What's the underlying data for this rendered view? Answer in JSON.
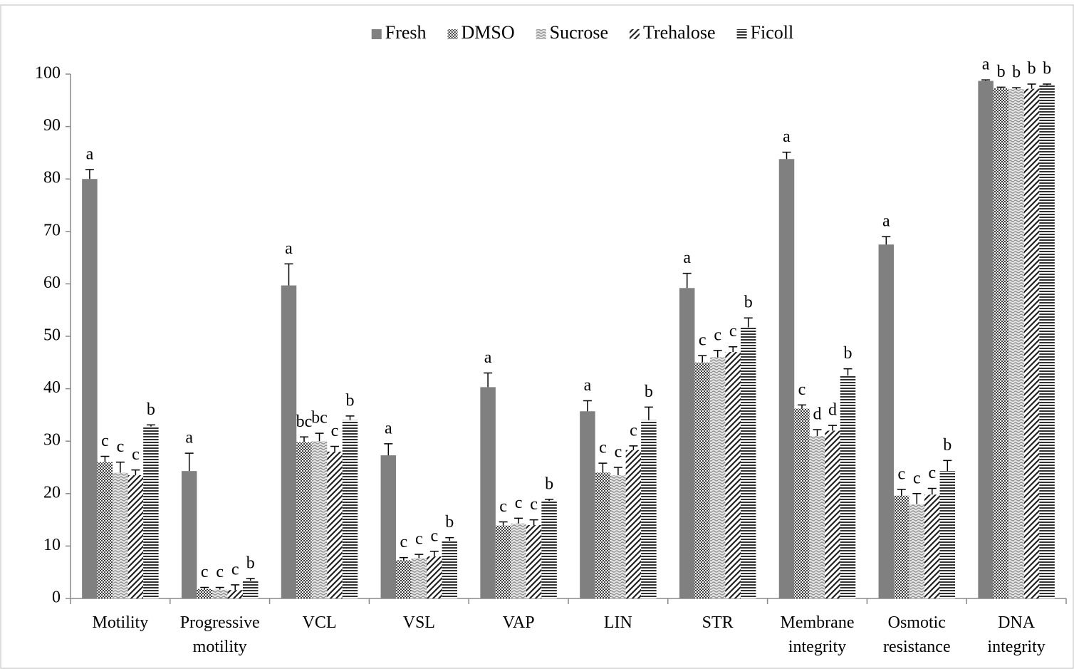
{
  "chart_data": {
    "type": "bar",
    "categories": [
      "Motility",
      "Progressive motility",
      "VCL",
      "VSL",
      "VAP",
      "LIN",
      "STR",
      "Membrane integrity",
      "Osmotic resistance",
      "DNA integrity"
    ],
    "series": [
      {
        "name": "Fresh",
        "color": "#808080",
        "pattern": "solid",
        "values": [
          80,
          24.3,
          59.7,
          27.3,
          40.3,
          35.7,
          59.2,
          83.8,
          67.5,
          98.7
        ],
        "errors": [
          1.8,
          3.4,
          4.1,
          2.2,
          2.7,
          2,
          2.8,
          1.3,
          1.5,
          0.2
        ],
        "letters": [
          "a",
          "a",
          "a",
          "a",
          "a",
          "a",
          "a",
          "a",
          "a",
          "a"
        ]
      },
      {
        "name": "DMSO",
        "color": "#404040",
        "pattern": "checker",
        "values": [
          26,
          1.8,
          29.8,
          7.3,
          13.9,
          24,
          45,
          36.2,
          19.6,
          97.3
        ],
        "errors": [
          1.1,
          0.3,
          1,
          0.5,
          0.7,
          1.8,
          1.3,
          0.7,
          1.2,
          0.2
        ],
        "letters": [
          "c",
          "c",
          "bc",
          "c",
          "c",
          "c",
          "c",
          "c",
          "c",
          "b"
        ]
      },
      {
        "name": "Sucrose",
        "color": "#909090",
        "pattern": "wave",
        "values": [
          24,
          1.7,
          30,
          7.7,
          14.3,
          23.5,
          46,
          31,
          18,
          97.1
        ],
        "errors": [
          2,
          0.4,
          1.5,
          0.7,
          1,
          1.5,
          1.3,
          1.2,
          2,
          0.3
        ],
        "letters": [
          "c",
          "c",
          "bc",
          "c",
          "c",
          "c",
          "c",
          "d",
          "c",
          "b"
        ]
      },
      {
        "name": "Trehalose",
        "color": "#202020",
        "pattern": "diagonal",
        "values": [
          23.5,
          1.6,
          28,
          8,
          14,
          28.3,
          47,
          32,
          19.8,
          97.2
        ],
        "errors": [
          1,
          1,
          1,
          1,
          1,
          0.8,
          1,
          1,
          1.2,
          0.9
        ],
        "letters": [
          "c",
          "c",
          "c",
          "c",
          "c",
          "c",
          "c",
          "d",
          "c",
          "b"
        ]
      },
      {
        "name": "Ficoll",
        "color": "#303030",
        "pattern": "horizontal",
        "values": [
          32.8,
          3.4,
          34,
          11,
          18.6,
          34,
          51.7,
          42.5,
          24.3,
          97.9
        ],
        "errors": [
          0.3,
          0.4,
          0.8,
          0.6,
          0.3,
          2.5,
          1.8,
          1.3,
          2,
          0.2
        ],
        "letters": [
          "b",
          "b",
          "b",
          "b",
          "b",
          "b",
          "b",
          "b",
          "b",
          "b"
        ]
      }
    ],
    "ylim": [
      0,
      100
    ],
    "yticks": [
      0,
      10,
      20,
      30,
      40,
      50,
      60,
      70,
      80,
      90,
      100
    ],
    "legend": "top"
  }
}
